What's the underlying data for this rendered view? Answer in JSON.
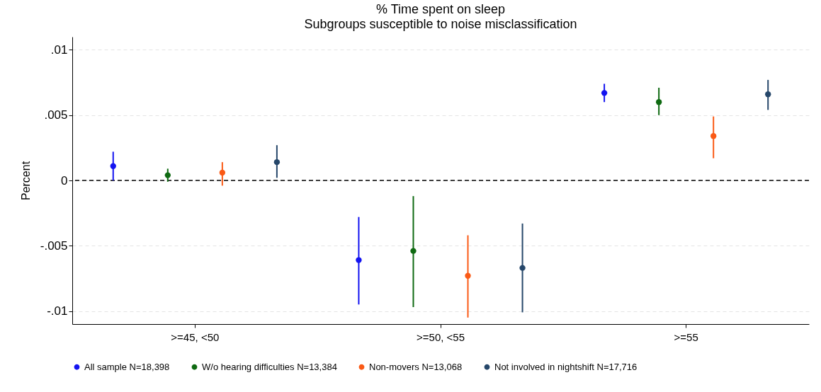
{
  "chart_data": {
    "type": "scatter",
    "title": "% Time spent on sleep",
    "subtitle": "Subgroups susceptible to noise misclassification",
    "ylabel": "Percent",
    "categories": [
      ">=45, <50",
      ">=50, <55",
      ">=55"
    ],
    "series": [
      {
        "name": "All sample N=18,398",
        "color": "#1414f0",
        "values": [
          0.0011,
          -0.0061,
          0.0067
        ],
        "errors": [
          [
            0.0,
            0.0022
          ],
          [
            -0.0095,
            -0.0028
          ],
          [
            0.006,
            0.0074
          ]
        ]
      },
      {
        "name": "W/o hearing difficulties N=13,384",
        "color": "#0f6a12",
        "values": [
          0.0004,
          -0.0054,
          0.006
        ],
        "errors": [
          [
            -0.0001,
            0.0009
          ],
          [
            -0.0097,
            -0.0012
          ],
          [
            0.005,
            0.0071
          ]
        ]
      },
      {
        "name": "Non-movers N=13,068",
        "color": "#fa5a16",
        "values": [
          0.0006,
          -0.0073,
          0.0034
        ],
        "errors": [
          [
            -0.0004,
            0.0014
          ],
          [
            -0.0105,
            -0.0042
          ],
          [
            0.0017,
            0.0049
          ]
        ]
      },
      {
        "name": "Not involved in nightshift N=17,716",
        "color": "#26476a",
        "values": [
          0.0014,
          -0.0067,
          0.0066
        ],
        "errors": [
          [
            0.0002,
            0.0027
          ],
          [
            -0.0101,
            -0.0033
          ],
          [
            0.0054,
            0.0077
          ]
        ]
      }
    ],
    "ylim": [
      -0.011,
      0.011
    ],
    "yticks": [
      {
        "value": -0.01,
        "label": "-.01"
      },
      {
        "value": -0.005,
        "label": "-.005"
      },
      0,
      {
        "value": 0.005,
        "label": ".005"
      },
      {
        "value": 0.01,
        "label": ".01"
      }
    ],
    "grid": "y",
    "legend": "bottom",
    "marker": "circle",
    "ref_lines": [
      {
        "axis": "y",
        "value": 0,
        "label": null,
        "color": "#000000",
        "line_style": "dashed"
      }
    ]
  }
}
